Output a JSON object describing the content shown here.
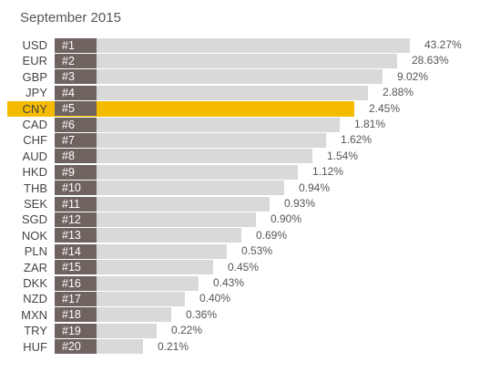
{
  "chart_data": {
    "type": "bar",
    "orientation": "horizontal",
    "title": "September 2015",
    "highlight_color": "#f5bb00",
    "bar_color": "#d9d9d9",
    "rank_color": "#6f6360",
    "highlight_index": 4,
    "bars": [
      {
        "code": "USD",
        "rank": "#1",
        "value": 43.27,
        "label": "43.27%"
      },
      {
        "code": "EUR",
        "rank": "#2",
        "value": 28.63,
        "label": "28.63%"
      },
      {
        "code": "GBP",
        "rank": "#3",
        "value": 9.02,
        "label": "9.02%"
      },
      {
        "code": "JPY",
        "rank": "#4",
        "value": 2.88,
        "label": "2.88%"
      },
      {
        "code": "CNY",
        "rank": "#5",
        "value": 2.45,
        "label": "2.45%"
      },
      {
        "code": "CAD",
        "rank": "#6",
        "value": 1.81,
        "label": "1.81%"
      },
      {
        "code": "CHF",
        "rank": "#7",
        "value": 1.62,
        "label": "1.62%"
      },
      {
        "code": "AUD",
        "rank": "#8",
        "value": 1.54,
        "label": "1.54%"
      },
      {
        "code": "HKD",
        "rank": "#9",
        "value": 1.12,
        "label": "1.12%"
      },
      {
        "code": "THB",
        "rank": "#10",
        "value": 0.94,
        "label": "0.94%"
      },
      {
        "code": "SEK",
        "rank": "#11",
        "value": 0.93,
        "label": "0.93%"
      },
      {
        "code": "SGD",
        "rank": "#12",
        "value": 0.9,
        "label": "0.90%"
      },
      {
        "code": "NOK",
        "rank": "#13",
        "value": 0.69,
        "label": "0.69%"
      },
      {
        "code": "PLN",
        "rank": "#14",
        "value": 0.53,
        "label": "0.53%"
      },
      {
        "code": "ZAR",
        "rank": "#15",
        "value": 0.45,
        "label": "0.45%"
      },
      {
        "code": "DKK",
        "rank": "#16",
        "value": 0.43,
        "label": "0.43%"
      },
      {
        "code": "NZD",
        "rank": "#17",
        "value": 0.4,
        "label": "0.40%"
      },
      {
        "code": "MXN",
        "rank": "#18",
        "value": 0.36,
        "label": "0.36%"
      },
      {
        "code": "TRY",
        "rank": "#19",
        "value": 0.22,
        "label": "0.22%"
      },
      {
        "code": "HUF",
        "rank": "#20",
        "value": 0.21,
        "label": "0.21%"
      }
    ]
  }
}
